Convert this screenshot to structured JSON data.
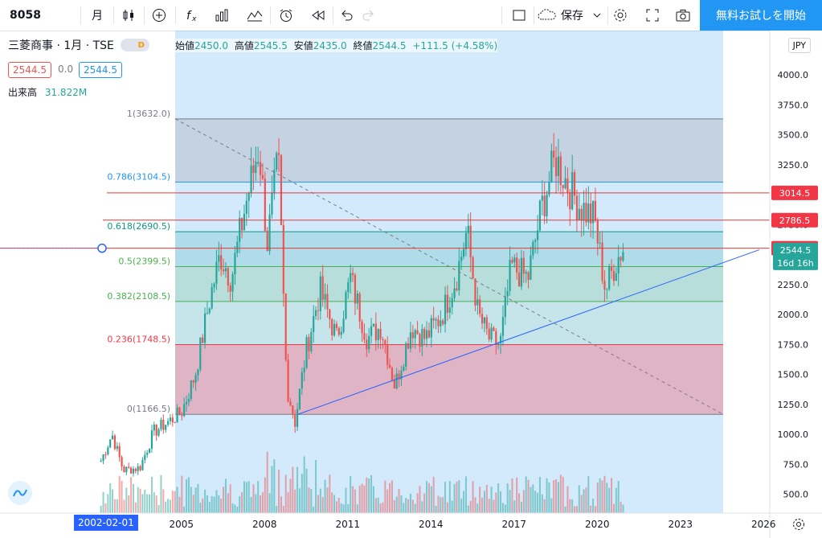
{
  "toolbar": {
    "symbol": "8058",
    "interval": "月",
    "save_label": "保存",
    "trial_label": "無料お試しを開始"
  },
  "legend": {
    "title": "三菱商事 · 1月 · TSE",
    "source_badge": "D",
    "open_label": "始値",
    "open": "2450.0",
    "high_label": "高値",
    "high": "2545.5",
    "low_label": "安値",
    "low": "2435.0",
    "close_label": "終値",
    "close": "2544.5",
    "change": "+111.5 (+4.58%)",
    "bid": "2544.5",
    "spread": "0.0",
    "ask": "2544.5",
    "volume_label": "出来高",
    "volume": "31.822M"
  },
  "currency": "JPY",
  "date_label": "2002-02-01",
  "colors": {
    "up": "#26a69a",
    "down": "#ef5350",
    "accent": "#2196f3",
    "trendline": "#2962ff"
  },
  "chart_data": {
    "type": "candlestick",
    "instrument": "三菱商事",
    "exchange": "TSE",
    "interval": "1月",
    "y_ticks": [
      500,
      750,
      1000,
      1250,
      1500,
      1750,
      2000,
      2250,
      2500,
      2750,
      3000,
      3250,
      3500,
      3750,
      4000
    ],
    "x_ticks": [
      "2005",
      "2008",
      "2011",
      "2014",
      "2017",
      "2020",
      "2023",
      "2026"
    ],
    "price_path": [
      [
        2002.1,
        780
      ],
      [
        2002.5,
        1000
      ],
      [
        2002.9,
        700
      ],
      [
        2003.5,
        720
      ],
      [
        2004.0,
        1020
      ],
      [
        2004.5,
        1100
      ],
      [
        2005.0,
        1180
      ],
      [
        2005.5,
        1500
      ],
      [
        2006.0,
        2100
      ],
      [
        2006.4,
        2500
      ],
      [
        2006.8,
        2300
      ],
      [
        2007.3,
        2900
      ],
      [
        2007.8,
        3400
      ],
      [
        2008.1,
        2600
      ],
      [
        2008.5,
        3300
      ],
      [
        2008.8,
        1400
      ],
      [
        2009.1,
        1100
      ],
      [
        2009.5,
        1700
      ],
      [
        2010.0,
        2200
      ],
      [
        2010.6,
        1800
      ],
      [
        2011.1,
        2300
      ],
      [
        2011.7,
        1800
      ],
      [
        2012.2,
        1900
      ],
      [
        2012.7,
        1400
      ],
      [
        2013.3,
        1900
      ],
      [
        2013.8,
        1800
      ],
      [
        2014.4,
        2000
      ],
      [
        2014.9,
        2300
      ],
      [
        2015.3,
        2700
      ],
      [
        2015.7,
        2000
      ],
      [
        2016.1,
        1800
      ],
      [
        2016.5,
        1750
      ],
      [
        2016.9,
        2400
      ],
      [
        2017.5,
        2300
      ],
      [
        2018.0,
        2900
      ],
      [
        2018.5,
        3300
      ],
      [
        2018.9,
        3100
      ],
      [
        2019.4,
        2900
      ],
      [
        2019.9,
        2800
      ],
      [
        2020.3,
        2200
      ],
      [
        2020.6,
        2400
      ],
      [
        2020.9,
        2550
      ]
    ],
    "current_price": "2544.5",
    "countdown": "16d 16h",
    "horizontal_lines": [
      "3014.5",
      "2786.5",
      "2552.5"
    ],
    "fib_levels": [
      {
        "ratio": "1",
        "label": "1(3632.0)",
        "price": 3632.0,
        "color": "#787b86"
      },
      {
        "ratio": "0.786",
        "label": "0.786(3104.5)",
        "price": 3104.5,
        "color": "#2196f3"
      },
      {
        "ratio": "0.618",
        "label": "0.618(2690.5)",
        "price": 2690.5,
        "color": "#089981"
      },
      {
        "ratio": "0.5",
        "label": "0.5(2399.5)",
        "price": 2399.5,
        "color": "#4caf50"
      },
      {
        "ratio": "0.382",
        "label": "0.382(2108.5)",
        "price": 2108.5,
        "color": "#4caf50"
      },
      {
        "ratio": "0.236",
        "label": "0.236(1748.5)",
        "price": 1748.5,
        "color": "#f23645"
      },
      {
        "ratio": "0",
        "label": "0(1166.5)",
        "price": 1166.5,
        "color": "#787b86"
      }
    ]
  }
}
